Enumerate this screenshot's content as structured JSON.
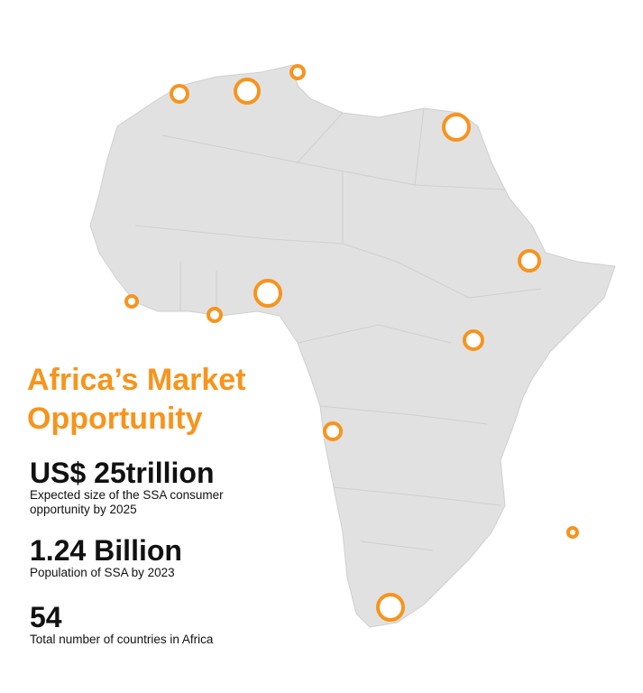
{
  "title": "Africa’s Market Opportunity",
  "stats": [
    {
      "value": "US$ 25trillion",
      "label": "Expected size of the SSA consumer opportunity by 2025"
    },
    {
      "value": "1.24 Billion",
      "label": "Population of SSA by 2023"
    },
    {
      "value": "54",
      "label": "Total number of countries in Africa"
    }
  ]
}
